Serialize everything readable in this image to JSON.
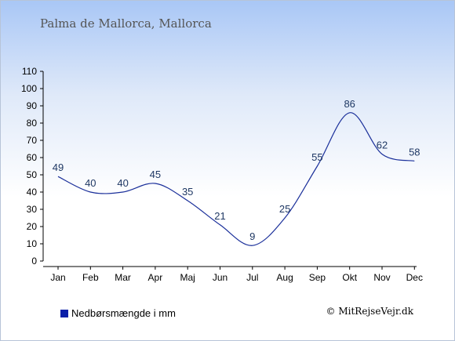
{
  "chart_data": {
    "type": "line",
    "title": "Palma de Mallorca, Mallorca",
    "categories": [
      "Jan",
      "Feb",
      "Mar",
      "Apr",
      "Maj",
      "Jun",
      "Jul",
      "Aug",
      "Sep",
      "Okt",
      "Nov",
      "Dec"
    ],
    "series": [
      {
        "name": "Nedbørsmængde i mm",
        "values": [
          49,
          40,
          40,
          45,
          35,
          21,
          9,
          25,
          55,
          86,
          62,
          58
        ]
      }
    ],
    "ylim": [
      0,
      110
    ],
    "yticks": [
      0,
      10,
      20,
      30,
      40,
      50,
      60,
      70,
      80,
      90,
      100,
      110
    ],
    "line_color": "#1a2f9a",
    "legend_color": "#0b1fa8",
    "legend_position": "bottom-left",
    "grid": false
  },
  "copyright": "© MitRejseVejr.dk"
}
